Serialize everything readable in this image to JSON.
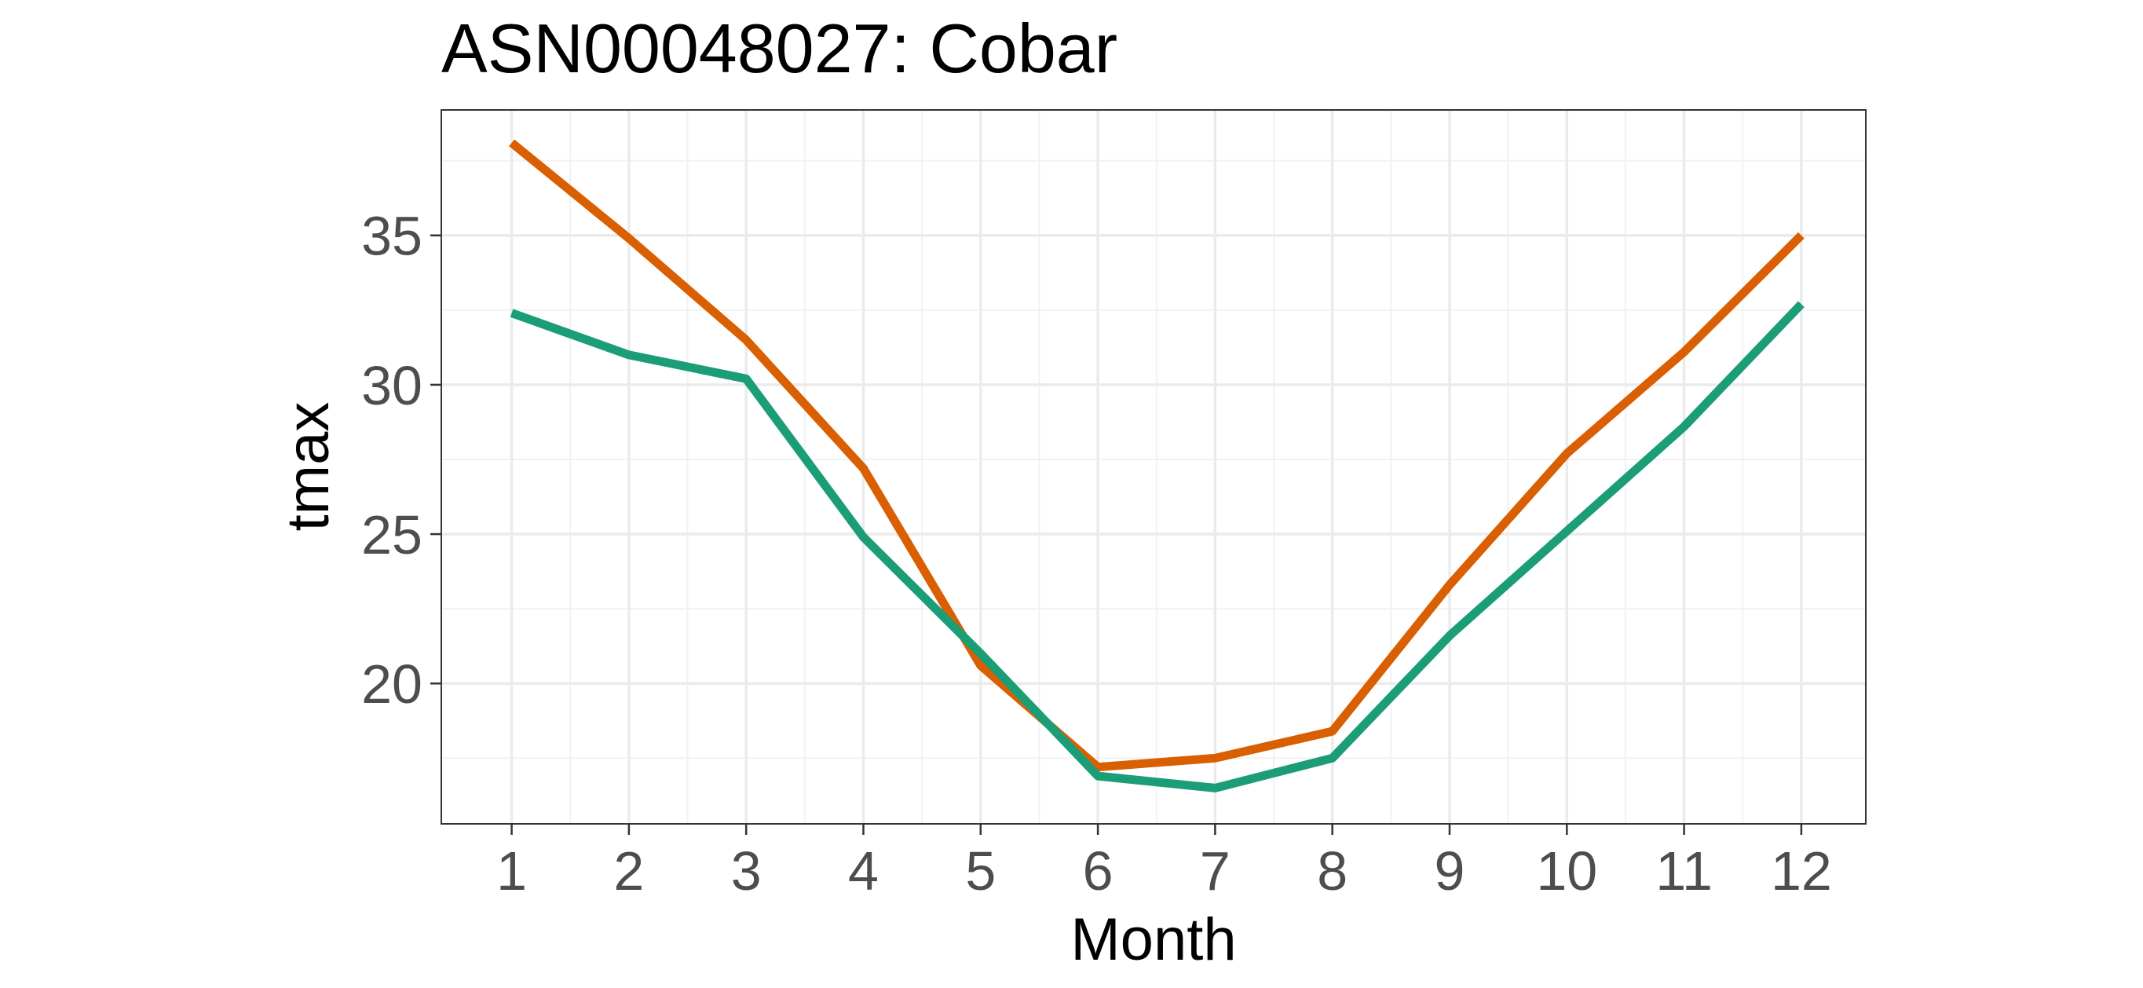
{
  "chart_data": {
    "type": "line",
    "title": "ASN00048027: Cobar",
    "xlabel": "Month",
    "ylabel": "tmax",
    "x": [
      1,
      2,
      3,
      4,
      5,
      6,
      7,
      8,
      9,
      10,
      11,
      12
    ],
    "xlim": [
      0.4,
      12.55
    ],
    "ylim": [
      15.3,
      39.2
    ],
    "yticks": [
      20,
      25,
      30,
      35
    ],
    "grid": true,
    "legend": "none",
    "series": [
      {
        "color": "#D95F02",
        "values": [
          38.1,
          34.9,
          31.5,
          27.2,
          20.6,
          17.2,
          17.5,
          18.4,
          23.3,
          27.7,
          31.1,
          35.0
        ]
      },
      {
        "color": "#1B9E77",
        "values": [
          32.4,
          31.0,
          30.2,
          24.9,
          21.0,
          16.9,
          16.5,
          17.5,
          21.6,
          25.1,
          28.6,
          32.7
        ]
      }
    ]
  }
}
